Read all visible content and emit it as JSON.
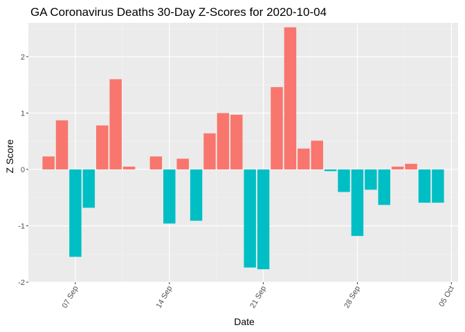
{
  "chart_data": {
    "type": "bar",
    "title": "GA Coronavirus Deaths 30-Day Z-Scores for 2020-10-04",
    "xlabel": "Date",
    "ylabel": "Z Score",
    "ylim": [
      -2,
      2.6
    ],
    "y_ticks": [
      -2,
      -1,
      0,
      1,
      2
    ],
    "x_ticks": [
      {
        "label": "07 Sep",
        "day_index": 0
      },
      {
        "label": "14 Sep",
        "day_index": 7
      },
      {
        "label": "21 Sep",
        "day_index": 14
      },
      {
        "label": "28 Sep",
        "day_index": 21
      },
      {
        "label": "05 Oct",
        "day_index": 28
      }
    ],
    "xlim_days": [
      -3.5,
      28.5
    ],
    "categories": [
      "2020-09-05",
      "2020-09-06",
      "2020-09-07",
      "2020-09-08",
      "2020-09-09",
      "2020-09-10",
      "2020-09-11",
      "2020-09-12",
      "2020-09-13",
      "2020-09-14",
      "2020-09-15",
      "2020-09-16",
      "2020-09-17",
      "2020-09-18",
      "2020-09-19",
      "2020-09-20",
      "2020-09-21",
      "2020-09-22",
      "2020-09-23",
      "2020-09-24",
      "2020-09-25",
      "2020-09-26",
      "2020-09-27",
      "2020-09-28",
      "2020-09-29",
      "2020-09-30",
      "2020-10-01",
      "2020-10-02",
      "2020-10-03",
      "2020-10-04"
    ],
    "day_indices": [
      -2,
      -1,
      0,
      1,
      2,
      3,
      4,
      5,
      6,
      7,
      8,
      9,
      10,
      11,
      12,
      13,
      14,
      15,
      16,
      17,
      18,
      19,
      20,
      21,
      22,
      23,
      24,
      25,
      26,
      27
    ],
    "values": [
      0.23,
      0.87,
      -1.55,
      -0.68,
      0.78,
      1.6,
      0.05,
      null,
      0.23,
      -0.96,
      0.19,
      -0.91,
      0.64,
      1.0,
      0.97,
      -1.74,
      -1.77,
      1.46,
      2.52,
      0.37,
      0.51,
      -0.03,
      -0.4,
      -1.18,
      -0.36,
      -0.63,
      0.05,
      0.1,
      -0.59,
      -0.59
    ],
    "grid": true,
    "legend": "none",
    "colors": {
      "positive": "#F8766D",
      "negative": "#00BFC4",
      "panel": "#EBEBEB",
      "grid_major": "#FFFFFF",
      "grid_minor": "#F4F4F4",
      "tick": "#333333"
    }
  }
}
